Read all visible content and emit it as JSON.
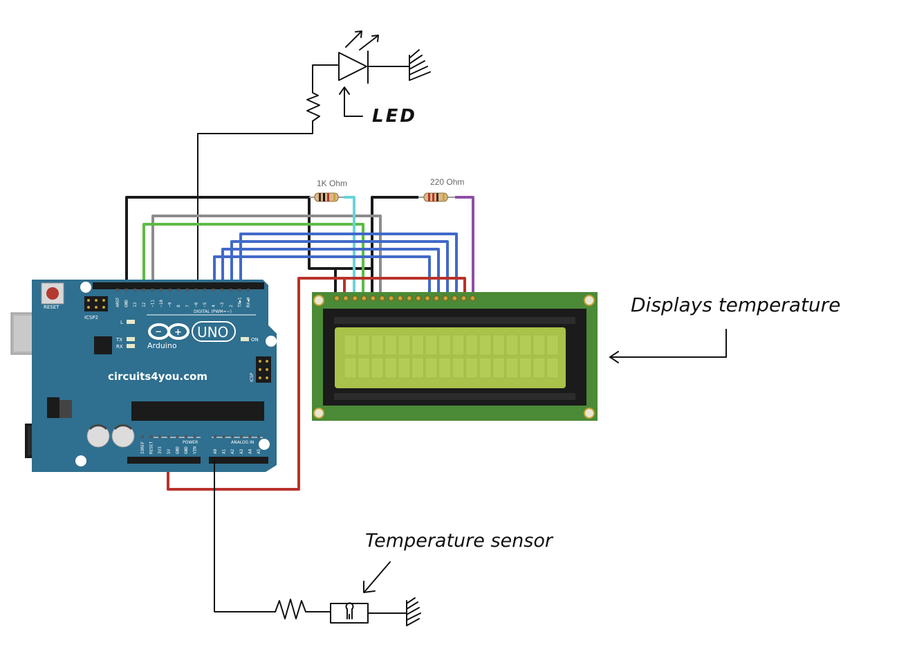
{
  "annotations": {
    "led": "LED",
    "display": "Displays temperature",
    "sensor": "Temperature sensor"
  },
  "resistors": {
    "r1": "1K Ohm",
    "r2": "220 Ohm"
  },
  "arduino": {
    "reset": "RESET",
    "icsp2": "ICSP2",
    "icsp": "ICSP",
    "led_l": "L",
    "led_tx": "TX",
    "led_rx": "RX",
    "brand": "Arduino",
    "model": "UNO",
    "on": "ON",
    "watermark": "circuits4you.com",
    "digital_header": "DIGITAL (PWM=~)",
    "power_header": "POWER",
    "analog_header": "ANALOG IN",
    "digital_pins": [
      "AREF",
      "GND",
      "13",
      "12",
      "~11",
      "~10",
      "~9",
      "8",
      "7",
      "~6",
      "~5",
      "4",
      "~3",
      "2",
      "TX▶1",
      "RX◀0"
    ],
    "power_pins": [
      "IOREF",
      "RESET",
      "3V3",
      "5V",
      "GND",
      "GND",
      "VIN"
    ],
    "analog_pins": [
      "A0",
      "A1",
      "A2",
      "A3",
      "A4",
      "A5"
    ]
  },
  "colors": {
    "board": "#2f6f8f",
    "lcd_pcb": "#4b8a36",
    "lcd_screen": "#a8c24a",
    "wire_black": "#1a1a1a",
    "wire_gray": "#8c8c8c",
    "wire_green": "#5dbb46",
    "wire_blue": "#4169c8",
    "wire_cyan": "#6ad4d8",
    "wire_red": "#b8322a",
    "wire_purple": "#8e4fa6"
  }
}
